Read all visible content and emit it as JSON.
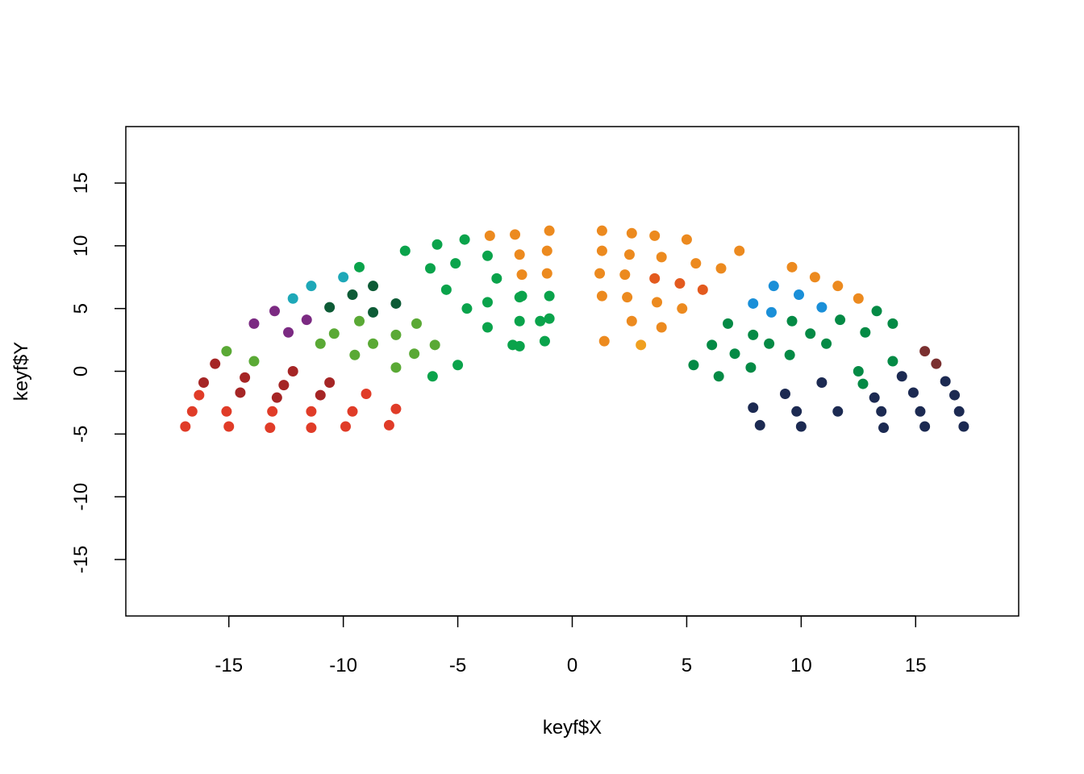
{
  "chart_data": {
    "type": "scatter",
    "title": "",
    "xlabel": "keyf$X",
    "ylabel": "keyf$Y",
    "xlim": [
      -19.5,
      19.5
    ],
    "ylim": [
      -19.5,
      19.5
    ],
    "xticks": [
      "-15",
      "-10",
      "-5",
      "0",
      "5",
      "10",
      "15"
    ],
    "xtick_values": [
      -15,
      -10,
      -5,
      0,
      5,
      10,
      15
    ],
    "yticks": [
      "-15",
      "-10",
      "-5",
      "0",
      "5",
      "10",
      "15"
    ],
    "ytick_values": [
      -15,
      -10,
      -5,
      0,
      5,
      10,
      15
    ],
    "grid": false,
    "legend": false,
    "series": [
      {
        "color": "#e03c28",
        "x": [
          -16.9,
          -16.6,
          -16.3,
          -15.0,
          -15.1,
          -13.2,
          -13.1,
          -11.4,
          -11.4,
          -9.9,
          -9.6,
          -9.0,
          -8.0,
          -7.7
        ],
        "y": [
          -4.4,
          -3.2,
          -1.9,
          -4.4,
          -3.2,
          -4.5,
          -3.2,
          -4.5,
          -3.2,
          -4.4,
          -3.2,
          -1.8,
          -4.3,
          -3.0
        ]
      },
      {
        "color": "#a52525",
        "x": [
          -16.1,
          -15.6,
          -14.3,
          -14.5,
          -12.9,
          -12.6,
          -12.2,
          -11.0,
          -10.6
        ],
        "y": [
          -0.9,
          0.6,
          -0.5,
          -1.7,
          -2.1,
          -1.1,
          0.0,
          -1.9,
          -0.9
        ]
      },
      {
        "color": "#5aa935",
        "x": [
          -15.1,
          -13.9,
          -11.0,
          -10.4,
          -9.5,
          -9.3,
          -8.7,
          -7.7,
          -7.7,
          -6.8,
          -6.9,
          -6.0
        ],
        "y": [
          1.6,
          0.8,
          2.2,
          3.0,
          1.3,
          4.0,
          2.2,
          0.3,
          2.9,
          3.8,
          1.4,
          2.1
        ]
      },
      {
        "color": "#7b2a82",
        "x": [
          -13.9,
          -13.0,
          -12.4,
          -11.6
        ],
        "y": [
          3.8,
          4.8,
          3.1,
          4.1
        ]
      },
      {
        "color": "#1ea8b8",
        "x": [
          -12.2,
          -11.4,
          -10.0
        ],
        "y": [
          5.8,
          6.8,
          7.5
        ]
      },
      {
        "color": "#0d5b36",
        "x": [
          -10.6,
          -9.6,
          -8.7,
          -8.7,
          -7.7
        ],
        "y": [
          5.1,
          6.1,
          6.8,
          4.7,
          5.4
        ]
      },
      {
        "color": "#0aa34b",
        "x": [
          -9.3,
          -7.3,
          -6.2,
          -5.9,
          -5.1,
          -4.7,
          -5.5,
          -6.1,
          -5.0,
          -4.6,
          -3.7,
          -3.7,
          -3.7,
          -3.3,
          -2.6,
          -2.3,
          -2.3,
          -2.2,
          -2.3,
          -1.2,
          -1.0,
          -1.0,
          -1.4
        ],
        "y": [
          8.3,
          9.6,
          8.2,
          10.1,
          8.6,
          10.5,
          6.5,
          -0.4,
          0.5,
          5.0,
          9.2,
          5.5,
          3.5,
          7.4,
          2.1,
          5.9,
          4.0,
          6.0,
          2.0,
          2.4,
          6.0,
          4.2,
          4.0
        ]
      },
      {
        "color": "#ec8a1f",
        "x": [
          -3.6,
          -2.5,
          -1.0,
          -2.3,
          -1.1,
          -1.1,
          -2.2,
          1.3,
          1.3,
          1.2,
          1.3,
          1.4,
          2.6,
          2.5,
          2.3,
          2.4,
          2.6,
          3.6,
          3.7,
          3.9,
          3.9,
          4.8,
          5.0,
          5.4,
          6.5,
          7.3,
          9.6,
          10.6,
          11.6,
          12.5
        ],
        "y": [
          10.8,
          10.9,
          11.2,
          9.3,
          9.6,
          7.8,
          7.7,
          11.2,
          9.6,
          7.8,
          6.0,
          2.4,
          11.0,
          9.3,
          7.7,
          5.9,
          4.0,
          10.8,
          5.5,
          9.1,
          3.5,
          5.0,
          10.5,
          8.6,
          8.2,
          9.6,
          8.3,
          7.5,
          6.8,
          5.8
        ]
      },
      {
        "color": "#e35a1e",
        "x": [
          3.6,
          4.7,
          5.7
        ],
        "y": [
          7.4,
          7.0,
          6.5
        ]
      },
      {
        "color": "#f0a020",
        "x": [
          3.0
        ],
        "y": [
          2.1
        ]
      },
      {
        "color": "#048a45",
        "x": [
          5.3,
          6.1,
          6.4,
          6.8,
          7.1,
          7.8,
          7.9,
          8.6,
          9.5,
          9.6,
          10.4,
          11.1,
          11.7,
          12.5,
          12.8,
          12.7,
          13.3,
          14.0,
          14.0
        ],
        "y": [
          0.5,
          2.1,
          -0.4,
          3.8,
          1.4,
          0.3,
          2.9,
          2.2,
          1.3,
          4.0,
          3.0,
          2.2,
          4.1,
          0.0,
          3.1,
          -1.0,
          4.8,
          3.8,
          0.8
        ]
      },
      {
        "color": "#1a8fd8",
        "x": [
          7.9,
          8.7,
          8.8,
          9.9,
          10.9
        ],
        "y": [
          5.4,
          4.7,
          6.8,
          6.1,
          5.1
        ]
      },
      {
        "color": "#1c2a52",
        "x": [
          7.9,
          8.2,
          9.3,
          9.8,
          10.0,
          10.9,
          11.6,
          13.2,
          13.5,
          13.6,
          14.4,
          14.9,
          15.2,
          15.4,
          16.3,
          16.7,
          16.9,
          17.1
        ],
        "y": [
          -2.9,
          -4.3,
          -1.8,
          -3.2,
          -4.4,
          -0.9,
          -3.2,
          -2.1,
          -3.2,
          -4.5,
          -0.4,
          -1.7,
          -3.2,
          -4.4,
          -0.8,
          -1.9,
          -3.2,
          -4.4
        ]
      },
      {
        "color": "#7a3030",
        "x": [
          15.4,
          15.9
        ],
        "y": [
          1.6,
          0.6
        ]
      }
    ]
  }
}
